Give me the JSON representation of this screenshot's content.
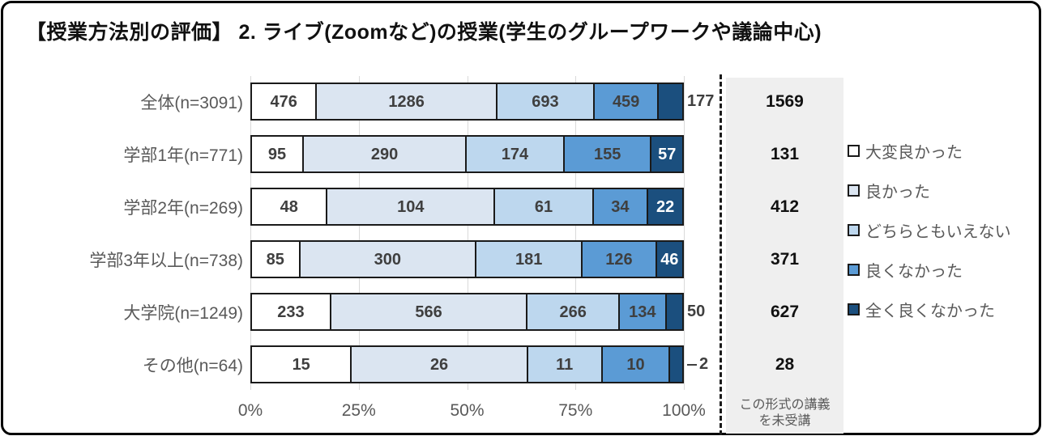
{
  "title": "【授業方法別の評価】 2. ライブ(Zoomなど)の授業(学生のグループワークや議論中心)",
  "chart_data": {
    "type": "bar",
    "orientation": "horizontal",
    "stacked": true,
    "value_mode": "counts shown as labels, bar lengths are % of row total",
    "categories": [
      "全体(n=3091)",
      "学部1年(n=771)",
      "学部2年(n=269)",
      "学部3年以上(n=738)",
      "大学院(n=1249)",
      "その他(n=64)"
    ],
    "series": [
      {
        "name": "大変良かった",
        "color": "#ffffff",
        "values": [
          476,
          95,
          48,
          85,
          233,
          15
        ]
      },
      {
        "name": "良かった",
        "color": "#dbe5f1",
        "values": [
          1286,
          290,
          104,
          300,
          566,
          26
        ]
      },
      {
        "name": "どちらともいえない",
        "color": "#bdd7ee",
        "values": [
          693,
          174,
          61,
          181,
          266,
          11
        ]
      },
      {
        "name": "良くなかった",
        "color": "#5b9bd5",
        "values": [
          459,
          155,
          34,
          126,
          134,
          10
        ]
      },
      {
        "name": "全く良くなかった",
        "color": "#1b4f7e",
        "values": [
          177,
          57,
          22,
          46,
          50,
          2
        ]
      }
    ],
    "not_attended": {
      "label_lines": [
        "この形式の講義",
        "を未受講"
      ],
      "values": [
        1569,
        131,
        412,
        371,
        627,
        28
      ]
    },
    "x_axis": {
      "ticks": [
        "0%",
        "25%",
        "50%",
        "75%",
        "100%"
      ],
      "range": [
        0,
        100
      ]
    },
    "legend_position": "right",
    "gridlines": true,
    "colors": {
      "grid": "#d9d9d9",
      "segment_border": "#1a1a1a",
      "label_dark": "#3f3f3f",
      "label_light": "#ffffff",
      "axis_text": "#595959",
      "unattended_bg": "#efefef"
    }
  }
}
